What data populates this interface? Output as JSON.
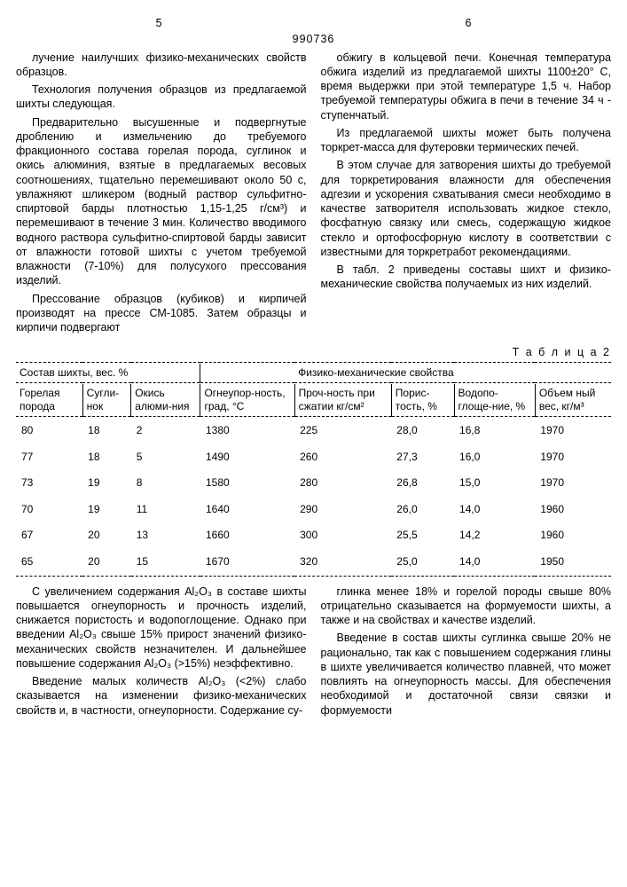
{
  "docnum": "990736",
  "page_left": "5",
  "page_right": "6",
  "left_col": [
    "лучение наилучших физико-механических свойств образцов.",
    "Технология получения образцов из предлагаемой шихты следующая.",
    "Предварительно высушенные и подвергнутые дроблению и измельчению до требуемого фракционного состава горелая порода, суглинок и окись алюминия, взятые в предлагаемых весовых соотношениях, тщательно перемешивают около 50 с, увлажняют шликером (водный раствор сульфитно-спиртовой барды плотностью 1,15-1,25 г/см³) и перемешивают в течение 3 мин. Количество вводимого водного раствора сульфитно-спиртовой барды зависит от влажности готовой шихты с учетом требуемой влажности (7-10%) для полусухого прессования изделий.",
    "Прессование образцов (кубиков) и кирпичей производят на прессе СМ-1085. Затем образцы и кирпичи подвергают"
  ],
  "right_col": [
    "обжигу в кольцевой печи. Конечная температура обжига изделий из предлагаемой шихты 1100±20° С, время выдержки при этой температуре 1,5 ч. Набор требуемой температуры обжига в печи в течение 34 ч - ступенчатый.",
    "Из предлагаемой шихты может быть получена торкрет-масса для футеровки термических печей.",
    "В этом случае для затворения шихты до требуемой для торкретирования влажности для обеспечения адгезии и ускорения схватывания смеси необходимо в качестве затворителя использовать жидкое стекло, фосфатную связку или смесь, содержащую жидкое стекло и ортофосфорную кислоту в соответствии с известными для торкретработ рекомендациями.",
    "В табл. 2 приведены составы шихт и физико-механические свойства получаемых из них изделий."
  ],
  "table_caption": "Т а б л и ц а 2",
  "group_headers": [
    "Состав шихты, вес. %",
    "Физико-механические свойства"
  ],
  "col_headers": [
    "Горелая порода",
    "Сугли-нок",
    "Окись алюми-ния",
    "Огнеупор-ность, град, °С",
    "Проч-ность при сжатии кг/см²",
    "Порис-тость, %",
    "Водопо-глоще-ние, %",
    "Объем ный вес, кг/м³"
  ],
  "rows": [
    [
      "80",
      "18",
      "2",
      "1380",
      "225",
      "28,0",
      "16,8",
      "1970"
    ],
    [
      "77",
      "18",
      "5",
      "1490",
      "260",
      "27,3",
      "16,0",
      "1970"
    ],
    [
      "73",
      "19",
      "8",
      "1580",
      "280",
      "26,8",
      "15,0",
      "1970"
    ],
    [
      "70",
      "19",
      "11",
      "1640",
      "290",
      "26,0",
      "14,0",
      "1960"
    ],
    [
      "67",
      "20",
      "13",
      "1660",
      "300",
      "25,5",
      "14,2",
      "1960"
    ],
    [
      "65",
      "20",
      "15",
      "1670",
      "320",
      "25,0",
      "14,0",
      "1950"
    ]
  ],
  "bottom_left": [
    "С увеличением содержания Al₂O₃ в составе шихты повышается огнеупорность и прочность изделий, снижается пористость и водопоглощение. Однако при введении Al₂O₃ свыше 15% прирост значений физико-механических свойств незначителен. И дальнейшее повышение содержания Al₂O₃ (>15%) неэффективно.",
    "Введение малых количеств Al₂O₃ (<2%) слабо сказывается на изменении физико-механических свойств и, в частности, огнеупорности. Содержание су-"
  ],
  "bottom_right": [
    "глинка менее 18% и горелой породы свыше 80% отрицательно сказывается на формуемости шихты, а также и на свойствах и качестве изделий.",
    "Введение в состав шихты суглинка свыше 20% не рационально, так как с повышением содержания глины в шихте увеличивается количество плавней, что может повлиять на огнеупорность массы. Для обеспечения необходимой и достаточной связи связки и формуемости"
  ]
}
